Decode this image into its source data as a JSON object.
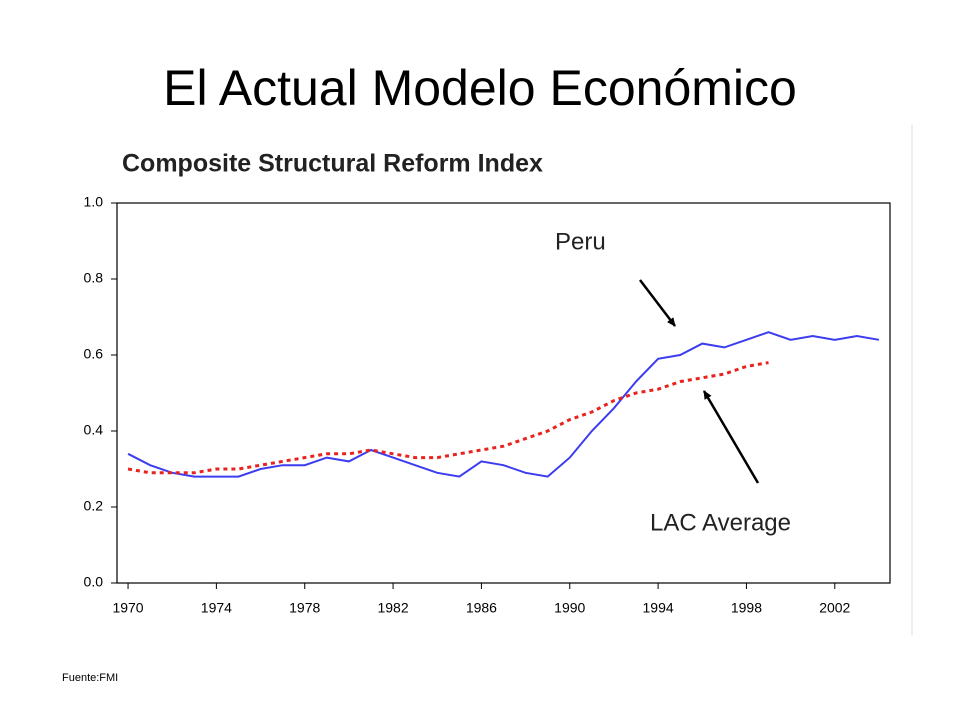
{
  "slide_title": "El Actual Modelo Económico",
  "source": "Fuente:FMI",
  "chart_data": {
    "type": "line",
    "title": "Composite Structural Reform Index",
    "x": [
      1970,
      1971,
      1972,
      1973,
      1974,
      1975,
      1976,
      1977,
      1978,
      1979,
      1980,
      1981,
      1982,
      1983,
      1984,
      1985,
      1986,
      1987,
      1988,
      1989,
      1990,
      1991,
      1992,
      1993,
      1994,
      1995,
      1996,
      1997,
      1998,
      1999,
      2000,
      2001,
      2002,
      2003,
      2004
    ],
    "series": [
      {
        "name": "Peru",
        "color": "#3c3cf0",
        "style": "solid",
        "values": [
          0.34,
          0.31,
          0.29,
          0.28,
          0.28,
          0.28,
          0.3,
          0.31,
          0.31,
          0.33,
          0.32,
          0.35,
          0.33,
          0.31,
          0.29,
          0.28,
          0.32,
          0.31,
          0.29,
          0.28,
          0.33,
          0.4,
          0.46,
          0.53,
          0.59,
          0.6,
          0.63,
          0.62,
          0.64,
          0.66,
          0.64,
          0.65,
          0.64,
          0.65,
          0.64
        ]
      },
      {
        "name": "LAC Average",
        "color": "#e8231e",
        "style": "dotted",
        "values": [
          0.3,
          0.29,
          0.29,
          0.29,
          0.3,
          0.3,
          0.31,
          0.32,
          0.33,
          0.34,
          0.34,
          0.35,
          0.34,
          0.33,
          0.33,
          0.34,
          0.35,
          0.36,
          0.38,
          0.4,
          0.43,
          0.45,
          0.48,
          0.5,
          0.51,
          0.53,
          0.54,
          0.55,
          0.57,
          0.58,
          null,
          null,
          null,
          null,
          null
        ]
      }
    ],
    "xlim": [
      1969.5,
      2004.5
    ],
    "xticks": [
      1970,
      1974,
      1978,
      1982,
      1986,
      1990,
      1994,
      1998,
      2002
    ],
    "ylim": [
      0,
      1
    ],
    "yticks": [
      {
        "value": 0,
        "label": "0.0"
      },
      0.2,
      0.4,
      0.6,
      0.8,
      {
        "value": 1,
        "label": "1.0"
      }
    ],
    "grid": false,
    "annotations": [
      "Peru",
      "LAC Average"
    ]
  }
}
